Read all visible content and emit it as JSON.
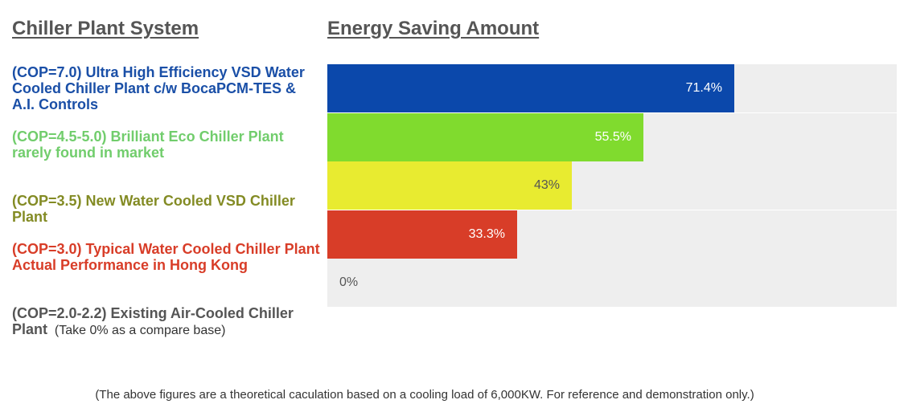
{
  "chart_data": {
    "type": "bar",
    "orientation": "horizontal",
    "left_heading": "Chiller Plant System",
    "right_heading": "Energy Saving Amount",
    "unit": "%",
    "xlim": [
      0,
      100
    ],
    "bars": [
      {
        "label": "(COP=7.0) Ultra High Efficiency VSD Water Cooled Chiller Plant c/w BocaPCM-TES & A.I. Controls",
        "extra": "",
        "value": 71.4,
        "value_label": "71.4%",
        "color": "#0b48ab",
        "label_color": "#1a4fa7",
        "text_color": "#ffffff"
      },
      {
        "label": "(COP=4.5-5.0) Brilliant Eco Chiller Plant rarely found in market",
        "extra": "",
        "value": 55.5,
        "value_label": "55.5%",
        "color": "#80db2e",
        "label_color": "#71cd6c",
        "text_color": "#ffffff"
      },
      {
        "label": "(COP=3.5) New Water Cooled VSD Chiller Plant",
        "extra": "",
        "value": 43,
        "value_label": "43%",
        "color": "#e8eb30",
        "label_color": "#838b24",
        "text_color": "#555555"
      },
      {
        "label": "(COP=3.0) Typical Water Cooled Chiller Plant Actual Performance in Hong Kong",
        "extra": "",
        "value": 33.3,
        "value_label": "33.3%",
        "color": "#d83d28",
        "label_color": "#d83d28",
        "text_color": "#ffffff"
      },
      {
        "label": "(COP=2.0-2.2) Existing Air-Cooled Chiller Plant",
        "extra": "(Take 0% as a compare base)",
        "value": 0,
        "value_label": "0%",
        "color": "#eeeeee",
        "label_color": "#555555",
        "text_color": "#555555"
      }
    ],
    "footnote": "(The above figures are a theoretical caculation based on a cooling load of 6,000KW. For reference and demonstration only.)"
  }
}
